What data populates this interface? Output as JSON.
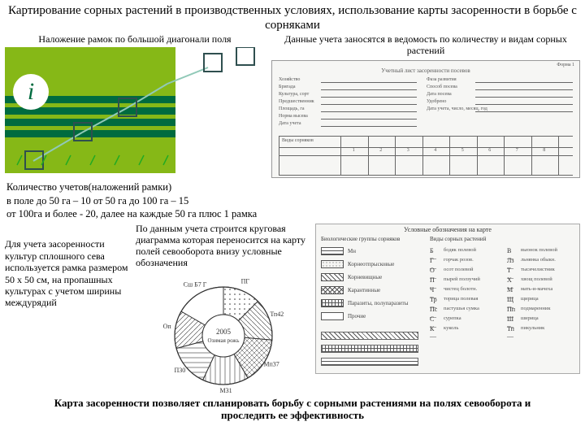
{
  "title": "Картирование сорных растений в производственных условиях, использование карты засоренности в борьбе с сорняками",
  "field": {
    "label": "Наложение рамок по большой диагонали поля",
    "bg": "#86b817",
    "icon_circle": "#ffffff",
    "stripe": "#006b3f",
    "frame_stroke": "#2f4f4f",
    "line_stroke": "#91c9b8"
  },
  "right": {
    "label": "Данные учета заносятся в ведомость по количеству и видам сорных растений",
    "header": "Учетный лист засоренности посевов",
    "rows": [
      "Хозяйство",
      "Бригада",
      "Культура, сорт",
      "Предшественник",
      "Площадь, га",
      "Норма высева",
      "Дата учета"
    ],
    "colcount": 8
  },
  "counts": {
    "hd": "Количество учетов(наложений рамки)",
    "l1": "в поле до 50 га – 10   от 50 га до 100 га – 15",
    "l2": "от 100га и более  - 20,  далее на каждые 50 га плюс 1 рамка"
  },
  "left_text": "Для учета засоренности культур сплошного сева используется рамка размером 50 х 50 см, на пропашных культурах с учетом ширины междурядий",
  "mid_label": "По данным учета строится круговая диаграмма которая переносится на карту полей севооборота внизу условные обозначения",
  "pie": {
    "center_year": "2005",
    "center_sub": "Озимая рожь",
    "slices": [
      {
        "label": "ПГ",
        "start": 0,
        "end": 45,
        "fill": "#ffffff",
        "hatch": "dots"
      },
      {
        "label": "Тп42",
        "start": 45,
        "end": 95,
        "fill": "#ffffff",
        "hatch": "lines"
      },
      {
        "label": "Мп37",
        "start": 95,
        "end": 150,
        "fill": "#ffffff",
        "hatch": "cross"
      },
      {
        "label": "М31",
        "start": 150,
        "end": 205,
        "fill": "#ffffff",
        "hatch": "vlines"
      },
      {
        "label": "П30",
        "start": 205,
        "end": 255,
        "fill": "#ffffff",
        "hatch": "hlines"
      },
      {
        "label": "Оп",
        "start": 255,
        "end": 300,
        "fill": "#ffffff",
        "hatch": "diag"
      },
      {
        "label": "Сш Б7 Г",
        "start": 300,
        "end": 360,
        "fill": "#ffffff",
        "hatch": "none"
      }
    ],
    "stroke": "#333333"
  },
  "legend": {
    "title": "Условные обозначения на карте",
    "col1_hd": "Биологические группы сорняков",
    "col2_hd": "Виды сорных растений",
    "groups": [
      {
        "name": "Мн",
        "hatch": "hlines"
      },
      {
        "name": "Корнеотпрысковые",
        "hatch": "dots"
      },
      {
        "name": "Корневищные",
        "hatch": "diag"
      },
      {
        "name": "Карантинные",
        "hatch": "cross"
      },
      {
        "name": "Паразиты, полупаразиты",
        "hatch": "grid"
      },
      {
        "name": "Прочие",
        "hatch": "blank"
      }
    ],
    "species": [
      [
        "Б",
        "бодяк полевой"
      ],
      [
        "В",
        "вьюнок полевой"
      ],
      [
        "Г",
        "горчак розов."
      ],
      [
        "Лз",
        "льнянка обыкн."
      ],
      [
        "О",
        "осот полевой"
      ],
      [
        "Т",
        "тысячелистник"
      ],
      [
        "П",
        "пырей ползучий"
      ],
      [
        "Х",
        "хвощ полевой"
      ],
      [
        "Ч",
        "чистец болотн."
      ],
      [
        "М",
        "мать-и-мачеха"
      ],
      [
        "Тр",
        "торица полевая"
      ],
      [
        "Щ",
        "щирица"
      ],
      [
        "Пс",
        "пастушья сумка"
      ],
      [
        "Пп",
        "подмаренник"
      ],
      [
        "С",
        "сурепка"
      ],
      [
        "Ш",
        "ширица"
      ],
      [
        "К",
        "куколь"
      ],
      [
        "Тп",
        "пикульник"
      ]
    ]
  },
  "bottom": "Карта засоренности позволяет спланировать борьбу с сорными растениями на полях севооборота и проследить ее эффективность"
}
